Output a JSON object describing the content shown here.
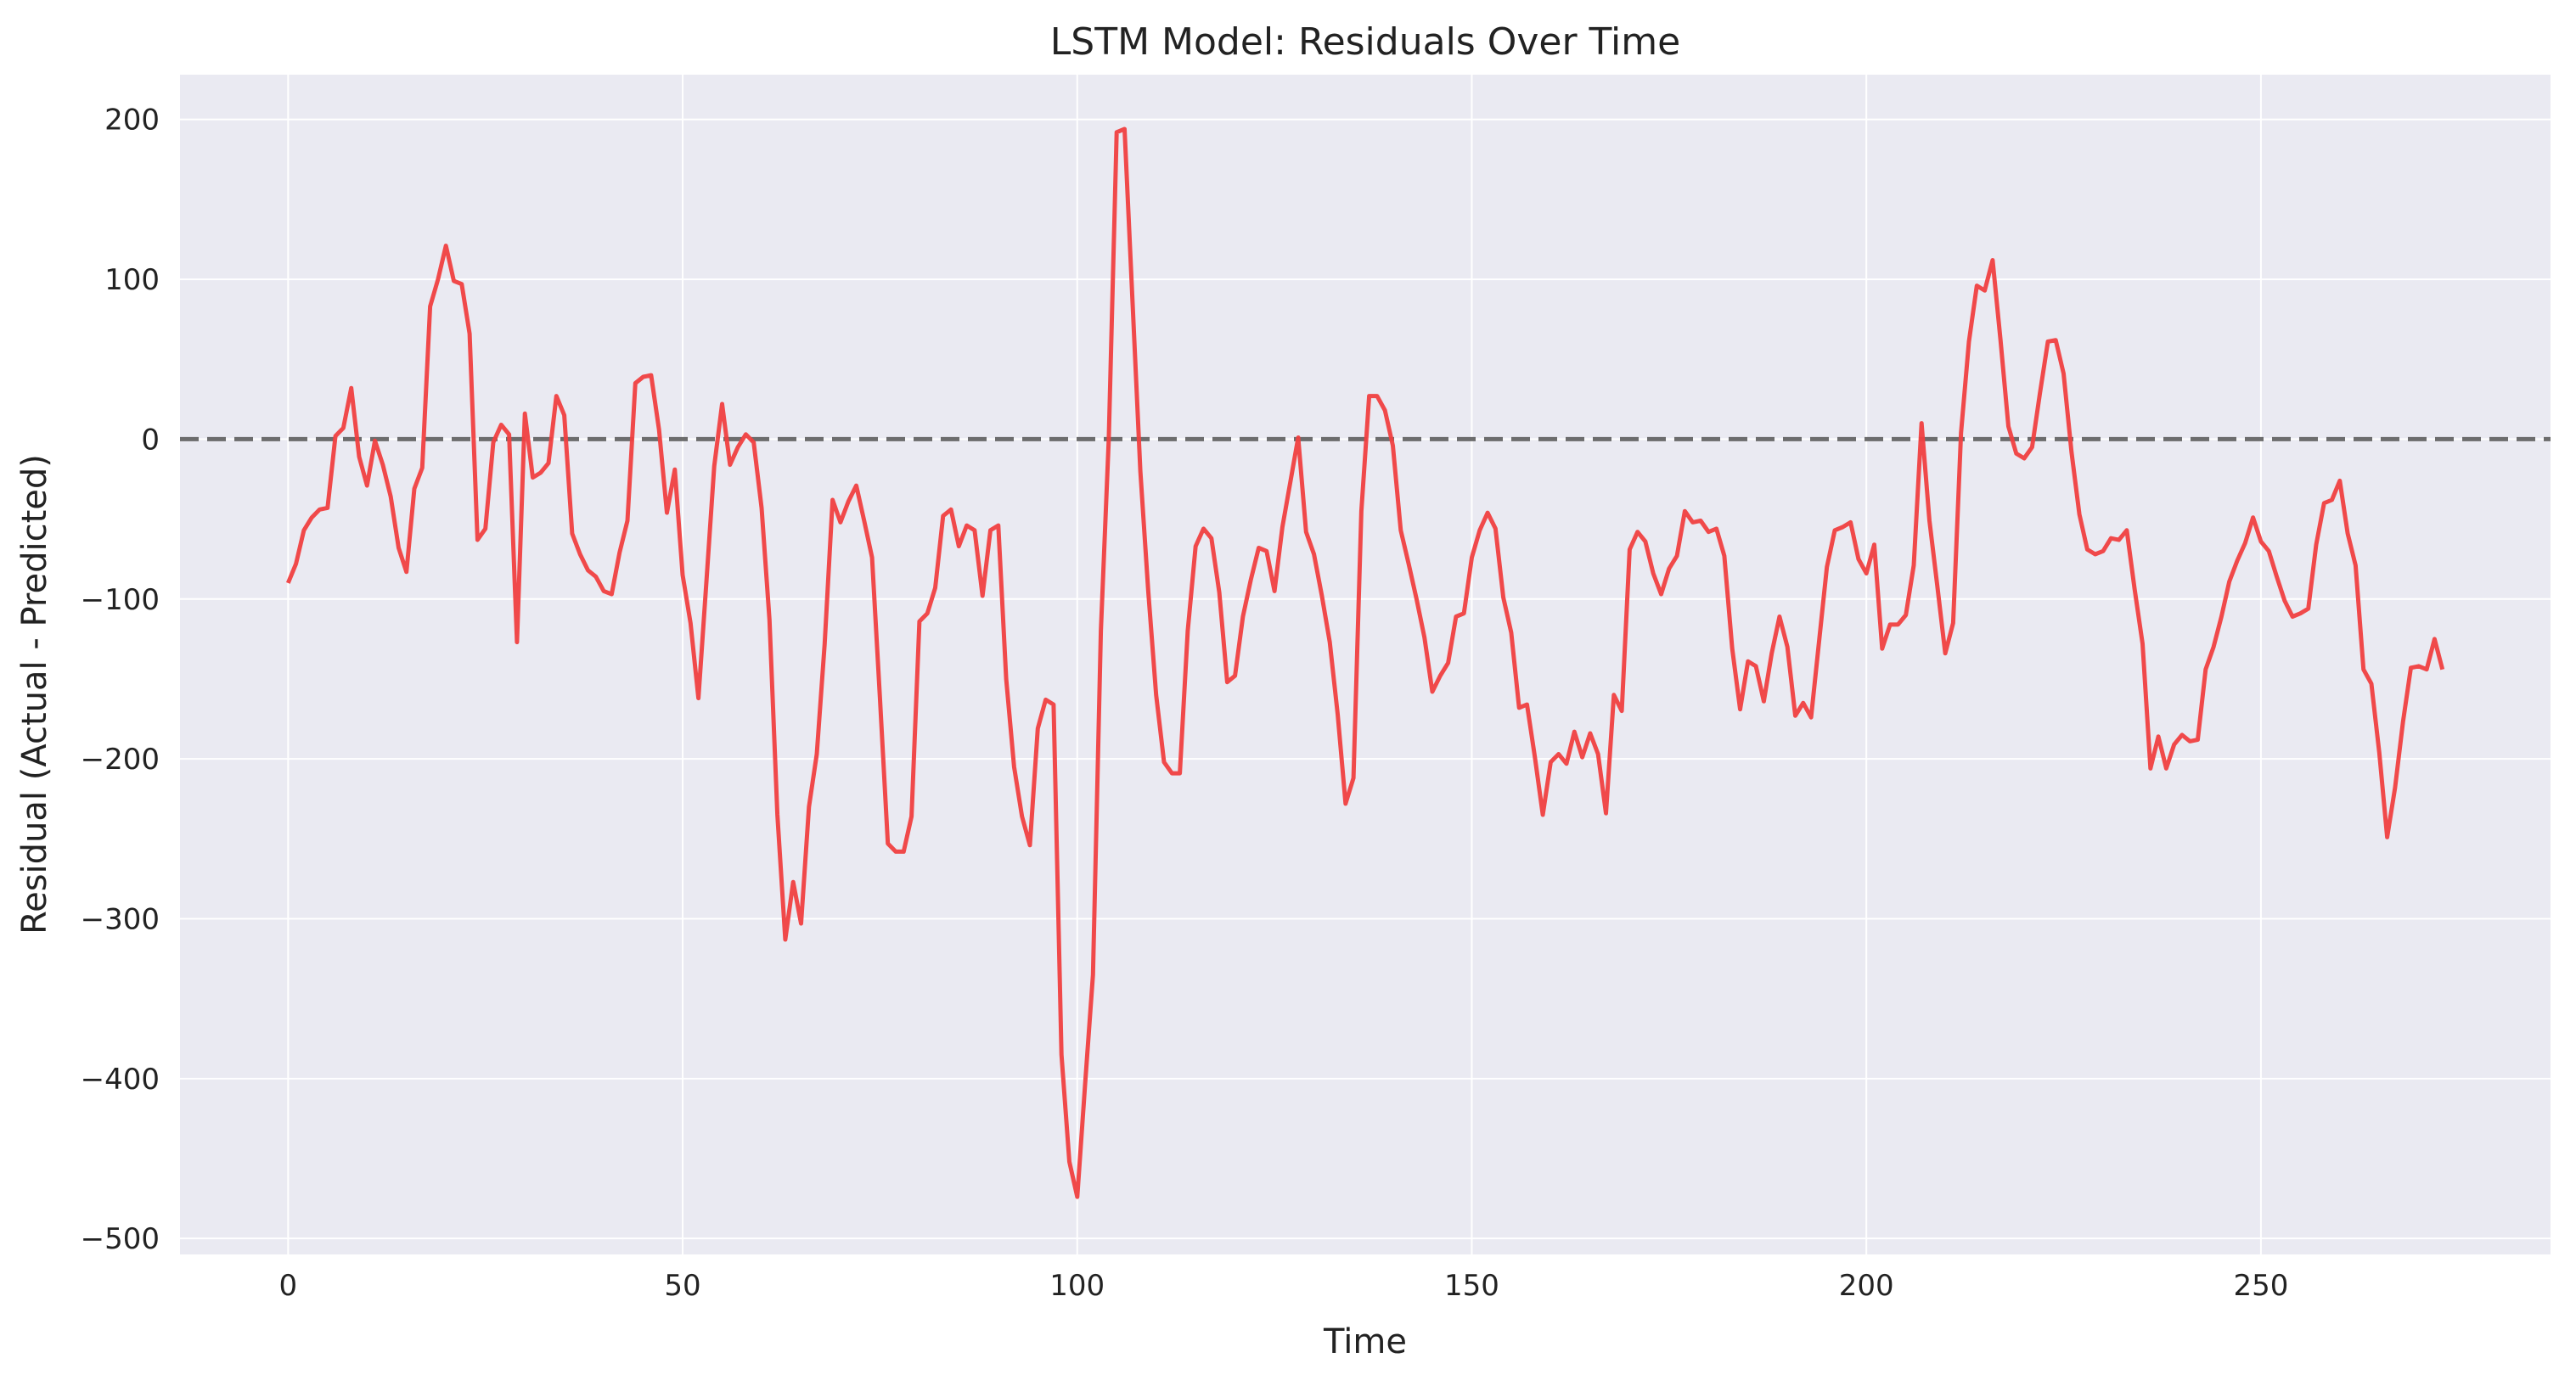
{
  "chart_data": {
    "type": "line",
    "title": "LSTM Model: Residuals Over Time",
    "xlabel": "Time",
    "ylabel": "Residual (Actual - Predicted)",
    "xlim": [
      -13.7,
      286.7
    ],
    "ylim": [
      -510,
      228
    ],
    "xticks": [
      0,
      50,
      100,
      150,
      200,
      250
    ],
    "yticks": [
      -500,
      -400,
      -300,
      -200,
      -100,
      0,
      100,
      200
    ],
    "ytick_labels": [
      "−500",
      "−400",
      "−300",
      "−200",
      "−100",
      "0",
      "100",
      "200"
    ],
    "xtick_labels": [
      "0",
      "50",
      "100",
      "150",
      "200",
      "250"
    ],
    "grid": true,
    "background_color": "#eaeaf2",
    "grid_color": "#ffffff",
    "series": [
      {
        "color": "#f04040",
        "y": [
          -90,
          -78,
          -57,
          -49,
          -44,
          -43,
          2,
          7,
          32,
          -11,
          -29,
          -1,
          -16,
          -36,
          -68,
          -83,
          -31,
          -18,
          83,
          100,
          121,
          99,
          97,
          66,
          -63,
          -56,
          -2,
          9,
          3,
          -127,
          16,
          -24,
          -21,
          -15,
          27,
          15,
          -59,
          -72,
          -82,
          -86,
          -95,
          -97,
          -71,
          -51,
          35,
          39,
          40,
          6,
          -46,
          -19,
          -85,
          -115,
          -162,
          -90,
          -17,
          22,
          -16,
          -5,
          3,
          -2,
          -43,
          -113,
          -235,
          -313,
          -277,
          -303,
          -230,
          -197,
          -128,
          -38,
          -52,
          -39,
          -29,
          -51,
          -74,
          -162,
          -253,
          -258,
          -258,
          -236,
          -114,
          -109,
          -93,
          -48,
          -44,
          -67,
          -54,
          -57,
          -98,
          -57,
          -54,
          -150,
          -205,
          -236,
          -254,
          -181,
          -163,
          -166,
          -385,
          -452,
          -474,
          -403,
          -335,
          -120,
          0,
          192,
          194,
          87,
          -20,
          -95,
          -160,
          -202,
          -209,
          -209,
          -120,
          -67,
          -56,
          -62,
          -96,
          -152,
          -148,
          -111,
          -88,
          -68,
          -70,
          -95,
          -55,
          -27,
          1,
          -58,
          -72,
          -98,
          -127,
          -172,
          -228,
          -212,
          -45,
          27,
          27,
          18,
          -4,
          -57,
          -78,
          -100,
          -124,
          -158,
          -148,
          -140,
          -111,
          -109,
          -74,
          -57,
          -46,
          -56,
          -99,
          -121,
          -168,
          -166,
          -199,
          -235,
          -202,
          -197,
          -203,
          -183,
          -199,
          -184,
          -197,
          -234,
          -160,
          -170,
          -69,
          -58,
          -64,
          -84,
          -97,
          -81,
          -73,
          -45,
          -52,
          -51,
          -58,
          -56,
          -73,
          -131,
          -169,
          -139,
          -142,
          -164,
          -134,
          -111,
          -130,
          -173,
          -165,
          -174,
          -127,
          -80,
          -57,
          -55,
          -52,
          -75,
          -84,
          -66,
          -131,
          -116,
          -116,
          -110,
          -79,
          10,
          -51,
          -92,
          -134,
          -115,
          4,
          61,
          96,
          93,
          112,
          62,
          8,
          -9,
          -12,
          -5,
          29,
          61,
          62,
          41,
          -8,
          -47,
          -69,
          -72,
          -70,
          -62,
          -63,
          -57,
          -94,
          -128,
          -206,
          -186,
          -206,
          -191,
          -185,
          -189,
          -188,
          -144,
          -130,
          -111,
          -89,
          -76,
          -65,
          -49,
          -64,
          -70,
          -86,
          -101,
          -111,
          -109,
          -106,
          -66,
          -40,
          -38,
          -26,
          -59,
          -79,
          -144,
          -153,
          -196,
          -249,
          -218,
          -177,
          -143,
          -142,
          -144,
          -125,
          -144
        ]
      }
    ],
    "reference_line": {
      "y": 0,
      "color": "#555555",
      "style": "dashed"
    }
  }
}
